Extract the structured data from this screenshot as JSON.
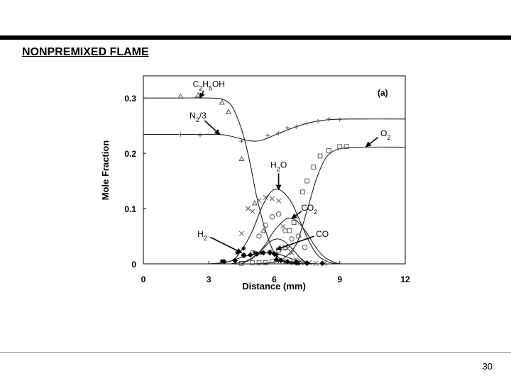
{
  "slide": {
    "title": "NONPREMIXED FLAME",
    "page_number": "30"
  },
  "chart_data": {
    "type": "line",
    "panel_label": "(a)",
    "xlabel": "Distance (mm)",
    "ylabel": "Mole Fraction",
    "xlim": [
      0,
      12
    ],
    "ylim": [
      0,
      0.34
    ],
    "x_ticks": [
      0,
      3,
      6,
      9,
      12
    ],
    "x_tick_labels": [
      "0",
      "3",
      "6",
      "9",
      "12"
    ],
    "y_ticks": [
      0,
      0.1,
      0.2,
      0.3
    ],
    "y_tick_labels": [
      "0",
      "0.1",
      "0.2",
      "0.3"
    ],
    "grid": false,
    "series": [
      {
        "name": "C2H5OH",
        "marker": "triangle",
        "line": {
          "x": [
            0,
            1.5,
            3.0,
            3.6,
            4.0,
            4.3,
            4.6,
            4.9,
            5.2,
            5.6,
            6.0,
            6.5,
            7.0,
            8.0,
            9.0
          ],
          "y": [
            0.3,
            0.3,
            0.3,
            0.298,
            0.288,
            0.265,
            0.23,
            0.18,
            0.12,
            0.06,
            0.02,
            0.004,
            0.001,
            0,
            0
          ]
        },
        "points": {
          "x": [
            1.7,
            2.5,
            3.6,
            3.9,
            4.5,
            5.1,
            5.5
          ],
          "y": [
            0.303,
            0.305,
            0.292,
            0.275,
            0.19,
            0.11,
            0.06
          ]
        }
      },
      {
        "name": "N2/3",
        "marker": "plus",
        "line": {
          "x": [
            0,
            2.5,
            3.5,
            4.0,
            4.5,
            4.8,
            5.2,
            5.6,
            6.2,
            7.0,
            7.8,
            8.6,
            9.5,
            12
          ],
          "y": [
            0.234,
            0.234,
            0.234,
            0.231,
            0.226,
            0.223,
            0.222,
            0.226,
            0.236,
            0.248,
            0.257,
            0.261,
            0.262,
            0.262
          ]
        },
        "points": {
          "x": [
            1.7,
            2.6,
            4.5,
            5.7,
            6.2,
            6.6,
            7.0,
            7.5,
            8.0,
            8.5,
            9.0
          ],
          "y": [
            0.234,
            0.233,
            0.222,
            0.232,
            0.236,
            0.246,
            0.248,
            0.254,
            0.258,
            0.262,
            0.261
          ]
        }
      },
      {
        "name": "O2",
        "marker": "square",
        "line": {
          "x": [
            4.0,
            5.0,
            6.0,
            6.5,
            7.0,
            7.3,
            7.6,
            7.9,
            8.2,
            8.5,
            9.0,
            10.0,
            12.0
          ],
          "y": [
            0,
            0,
            0.003,
            0.012,
            0.035,
            0.07,
            0.11,
            0.15,
            0.18,
            0.198,
            0.208,
            0.211,
            0.211
          ]
        },
        "points": {
          "x": [
            4.5,
            5.0,
            5.3,
            5.6,
            5.9,
            6.1,
            6.2,
            6.5,
            6.7,
            6.9,
            7.3,
            7.5,
            7.8,
            8.1,
            8.5,
            9.0,
            9.3
          ],
          "y": [
            0.001,
            0.002,
            0.002,
            0.002,
            0.004,
            0.004,
            0.025,
            0.03,
            0.06,
            0.075,
            0.13,
            0.15,
            0.175,
            0.195,
            0.205,
            0.212,
            0.212
          ]
        }
      },
      {
        "name": "H2O",
        "marker": "x",
        "line": {
          "x": [
            3.0,
            4.0,
            4.5,
            5.0,
            5.4,
            5.8,
            6.1,
            6.4,
            6.8,
            7.2,
            7.6,
            8.0,
            8.5,
            9.0
          ],
          "y": [
            0,
            0.005,
            0.025,
            0.06,
            0.1,
            0.128,
            0.135,
            0.13,
            0.11,
            0.075,
            0.04,
            0.015,
            0.003,
            0
          ]
        },
        "points": {
          "x": [
            4.5,
            4.8,
            5.0,
            5.3,
            5.6,
            5.9,
            6.2,
            6.4,
            6.6,
            6.8,
            7.0,
            7.2,
            7.4,
            7.6,
            7.9,
            8.3
          ],
          "y": [
            0.055,
            0.1,
            0.095,
            0.115,
            0.12,
            0.118,
            0.114,
            0.068,
            0.028,
            0.02,
            0.008,
            0.005,
            0.002,
            0.002,
            0.001,
            0.001
          ]
        }
      },
      {
        "name": "CO2",
        "marker": "circle",
        "line": {
          "x": [
            4.5,
            5.0,
            5.5,
            6.0,
            6.5,
            6.8,
            7.1,
            7.5,
            7.9,
            8.3,
            8.8,
            9.0
          ],
          "y": [
            0,
            0.01,
            0.03,
            0.06,
            0.08,
            0.082,
            0.075,
            0.055,
            0.03,
            0.012,
            0.002,
            0
          ]
        },
        "points": {
          "x": [
            4.6,
            5.0,
            5.3,
            5.6,
            5.9,
            6.2,
            6.5,
            6.8,
            7.1,
            7.4
          ],
          "y": [
            0.015,
            0.02,
            0.05,
            0.07,
            0.085,
            0.09,
            0.06,
            0.045,
            0.05,
            0.03
          ]
        }
      },
      {
        "name": "CO",
        "marker": "asterisk",
        "line": {
          "x": [
            4.0,
            4.7,
            5.1,
            5.5,
            5.8,
            6.1,
            6.4,
            6.8,
            7.2,
            7.5,
            7.8
          ],
          "y": [
            0,
            0.005,
            0.014,
            0.028,
            0.04,
            0.045,
            0.042,
            0.028,
            0.01,
            0.002,
            0
          ]
        },
        "points": {
          "x": [
            3.6,
            4.3,
            4.6,
            5.1,
            5.4,
            5.8,
            6.1,
            6.5,
            6.8,
            7.1
          ],
          "y": [
            0.005,
            0.02,
            0.028,
            0.02,
            0.02,
            0.022,
            0.016,
            0.004,
            0.002,
            0.001
          ]
        }
      },
      {
        "name": "H2",
        "marker": "diamond",
        "line": {
          "x": [
            3.2,
            4.0,
            4.5,
            5.0,
            5.4,
            5.8,
            6.1,
            6.4,
            6.8,
            7.2,
            7.6,
            8.0,
            8.5
          ],
          "y": [
            0,
            0.005,
            0.012,
            0.017,
            0.02,
            0.021,
            0.019,
            0.015,
            0.009,
            0.004,
            0.001,
            0,
            0
          ]
        },
        "points": {
          "x": [
            3.7,
            4.2,
            4.6,
            4.9,
            5.2,
            5.5,
            5.8,
            6.0,
            6.1,
            6.3,
            6.6,
            7.0,
            7.5,
            8.2
          ],
          "y": [
            0.004,
            0.006,
            0.016,
            0.016,
            0.018,
            0.02,
            0.02,
            0.018,
            0.008,
            0.006,
            0.004,
            0.002,
            0.001,
            0.001
          ]
        }
      }
    ],
    "annotations": [
      {
        "series": "C2H5OH",
        "arrow_to": [
          2.6,
          0.3
        ],
        "label_at": [
          3.0,
          0.32
        ]
      },
      {
        "series": "N2/3",
        "arrow_to": [
          3.5,
          0.234
        ],
        "label_at": [
          2.5,
          0.263
        ]
      },
      {
        "series": "O2",
        "arrow_to": [
          10.2,
          0.212
        ],
        "label_at": [
          11.1,
          0.231
        ]
      },
      {
        "series": "H2O",
        "arrow_to": [
          6.2,
          0.134
        ],
        "label_at": [
          6.2,
          0.174
        ]
      },
      {
        "series": "CO2",
        "arrow_to": [
          6.8,
          0.082
        ],
        "label_at": [
          7.6,
          0.096
        ]
      },
      {
        "series": "CO",
        "arrow_to": [
          6.1,
          0.026
        ],
        "label_at": [
          8.2,
          0.049
        ]
      },
      {
        "series": "H2",
        "arrow_to": [
          4.5,
          0.02
        ],
        "label_at": [
          2.7,
          0.049
        ]
      }
    ]
  }
}
